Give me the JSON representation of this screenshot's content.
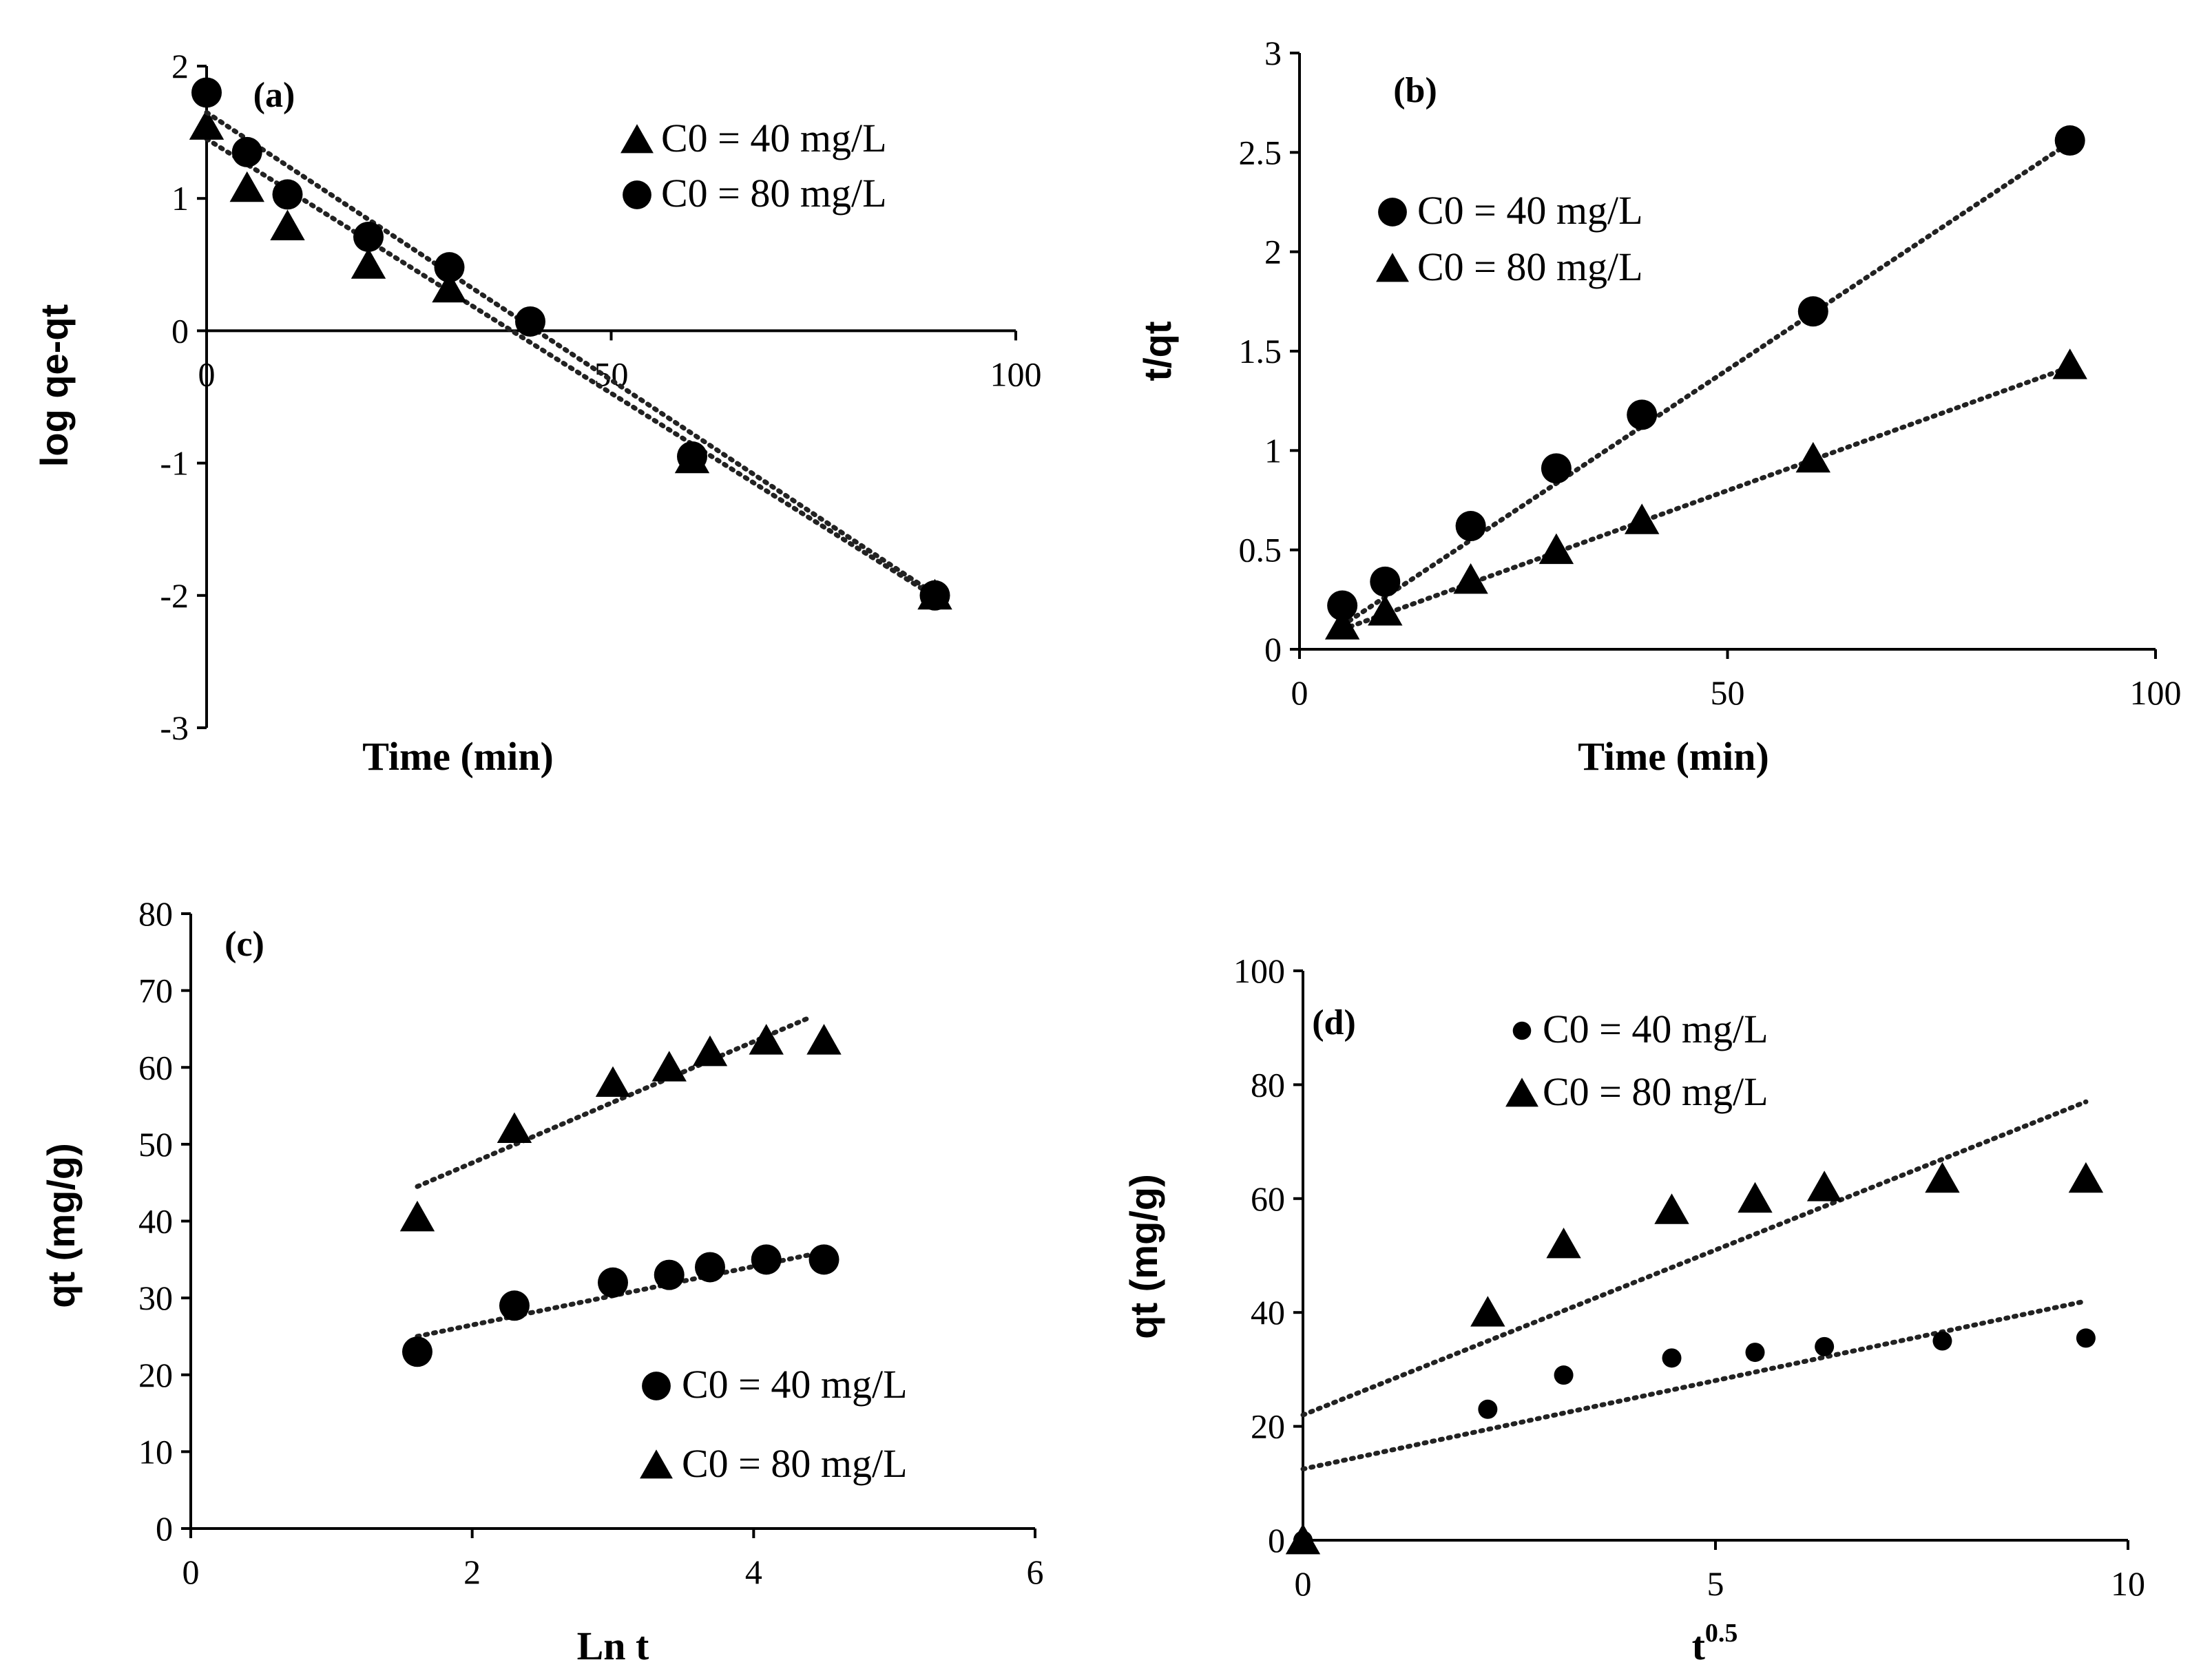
{
  "figure": {
    "panels": [
      "a",
      "b",
      "c",
      "d"
    ]
  },
  "chart_data": [
    {
      "id": "a",
      "type": "scatter",
      "panel_label": "(a)",
      "title": "",
      "xlabel": "Time (min)",
      "ylabel": "log qe-qt",
      "xlim": [
        0,
        100
      ],
      "ylim": [
        -3,
        2
      ],
      "xticks": [
        0,
        50,
        100
      ],
      "yticks": [
        -3,
        -2,
        -1,
        0,
        1,
        2
      ],
      "axis_style": "crossing",
      "legend_position": "top-right",
      "series": [
        {
          "name": "C0 = 40 mg/L",
          "marker": "triangle",
          "x": [
            0,
            5,
            10,
            20,
            30,
            60,
            90
          ],
          "y": [
            1.55,
            1.08,
            0.79,
            0.5,
            0.32,
            -0.97,
            -2.0
          ],
          "trend": [
            [
              0,
              1.45
            ],
            [
              90,
              -2.01
            ]
          ]
        },
        {
          "name": "C0 = 80 mg/L",
          "marker": "circle",
          "x": [
            0,
            5,
            10,
            20,
            30,
            40,
            60,
            90
          ],
          "y": [
            1.8,
            1.35,
            1.03,
            0.71,
            0.48,
            0.07,
            -0.95,
            -2.0
          ],
          "trend": [
            [
              0,
              1.65
            ],
            [
              90,
              -1.99
            ]
          ]
        }
      ]
    },
    {
      "id": "b",
      "type": "scatter",
      "panel_label": "(b)",
      "title": "",
      "xlabel": "Time (min)",
      "ylabel": "t/qt",
      "xlim": [
        0,
        100
      ],
      "ylim": [
        0,
        3
      ],
      "xticks": [
        0,
        50,
        100
      ],
      "yticks": [
        0,
        0.5,
        1,
        1.5,
        2,
        2.5,
        3
      ],
      "axis_style": "box-left-bottom",
      "legend_position": "top-left",
      "series": [
        {
          "name": "C0 = 40 mg/L",
          "marker": "circle",
          "x": [
            5,
            10,
            20,
            30,
            40,
            60,
            90
          ],
          "y": [
            0.22,
            0.34,
            0.62,
            0.91,
            1.18,
            1.7,
            2.56
          ],
          "trend": [
            [
              5,
              0.12
            ],
            [
              90,
              2.55
            ]
          ]
        },
        {
          "name": "C0 = 80 mg/L",
          "marker": "triangle",
          "x": [
            5,
            10,
            20,
            30,
            40,
            60,
            90
          ],
          "y": [
            0.12,
            0.19,
            0.35,
            0.5,
            0.65,
            0.96,
            1.43
          ],
          "trend": [
            [
              5,
              0.1
            ],
            [
              90,
              1.42
            ]
          ]
        }
      ]
    },
    {
      "id": "c",
      "type": "scatter",
      "panel_label": "(c)",
      "title": "",
      "xlabel": "Ln t",
      "ylabel": "qt (mg/g)",
      "xlim": [
        0,
        6
      ],
      "ylim": [
        0,
        80
      ],
      "xticks": [
        0,
        2,
        4,
        6
      ],
      "yticks": [
        0,
        10,
        20,
        30,
        40,
        50,
        60,
        70,
        80
      ],
      "axis_style": "box-left-bottom",
      "legend_position": "bottom-right",
      "series": [
        {
          "name": "C0 = 40 mg/L",
          "marker": "circle",
          "x": [
            1.61,
            2.3,
            3.0,
            3.4,
            3.69,
            4.09,
            4.5
          ],
          "y": [
            23,
            29,
            32,
            33,
            34,
            35,
            35
          ],
          "trend": [
            [
              1.61,
              25
            ],
            [
              4.5,
              36
            ]
          ]
        },
        {
          "name": "C0 = 80 mg/L",
          "marker": "triangle",
          "x": [
            1.61,
            2.3,
            3.0,
            3.4,
            3.69,
            4.09,
            4.5
          ],
          "y": [
            40.5,
            52,
            58,
            60,
            62,
            63.5,
            63.5
          ],
          "trend": [
            [
              1.61,
              44.5
            ],
            [
              4.4,
              66.5
            ]
          ]
        }
      ]
    },
    {
      "id": "d",
      "type": "scatter",
      "panel_label": "(d)",
      "title": "",
      "xlabel": "t",
      "xlabel_sup": "0.5",
      "ylabel": "qt (mg/g)",
      "xlim": [
        0,
        10
      ],
      "ylim": [
        0,
        100
      ],
      "xticks": [
        0,
        5,
        10
      ],
      "yticks": [
        0,
        20,
        40,
        60,
        80,
        100
      ],
      "axis_style": "box-left-bottom",
      "legend_position": "top-left",
      "series": [
        {
          "name": "C0 = 40 mg/L",
          "marker": "small-circle",
          "x": [
            0,
            2.24,
            3.16,
            4.47,
            5.48,
            6.32,
            7.75,
            9.49
          ],
          "y": [
            0,
            23,
            29,
            32,
            33,
            34,
            35,
            35.5
          ],
          "trend": [
            [
              0,
              12.5
            ],
            [
              9.49,
              42
            ]
          ]
        },
        {
          "name": "C0 = 80 mg/L",
          "marker": "triangle",
          "x": [
            0,
            2.24,
            3.16,
            4.47,
            5.48,
            6.32,
            7.75,
            9.49
          ],
          "y": [
            0,
            40,
            52,
            58,
            60,
            62,
            63.5,
            63.5
          ],
          "trend": [
            [
              0,
              22
            ],
            [
              9.49,
              77
            ]
          ]
        }
      ]
    }
  ]
}
